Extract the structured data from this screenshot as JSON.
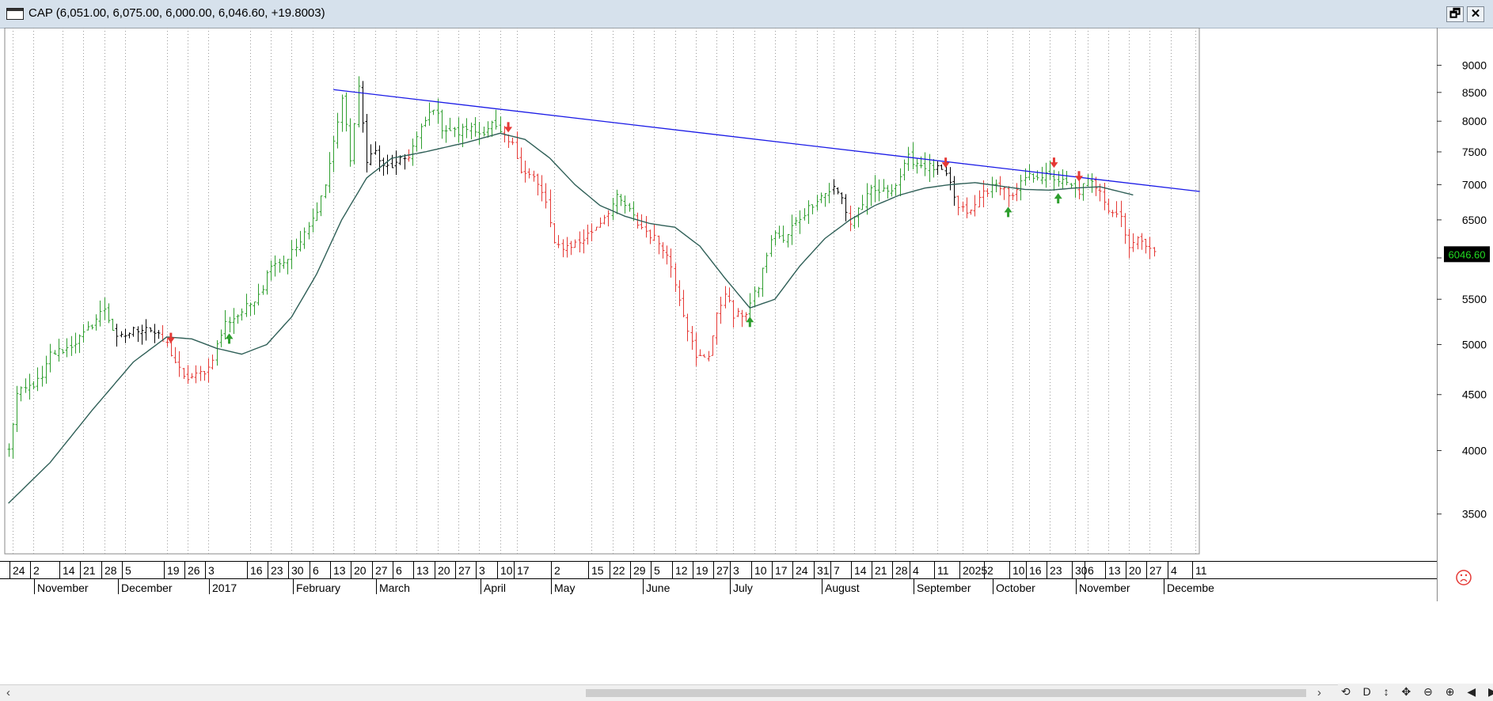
{
  "window": {
    "title": "CAP (6,051.00, 6,075.00, 6,000.00, 6,046.60, +19.8003)",
    "restore_label": "🗗",
    "close_label": "✕"
  },
  "scrollbar": {
    "left_arrow": "‹",
    "right_arrow": "›",
    "nav_tools": "⟲ D ↕ ✥ ⊖ ⊕ ◀ ▶ ⊟"
  },
  "status_icon": "sad-face-icon",
  "chart_data": {
    "type": "ohlc",
    "title": "",
    "last_price_label": "6046.60",
    "y_scale": "log",
    "ylim": [
      3300,
      9500
    ],
    "y_ticks": [
      3500,
      4000,
      4500,
      5000,
      5500,
      6000,
      6500,
      7000,
      7500,
      8000,
      8500,
      9000
    ],
    "grid": "vertical-dotted",
    "colors": {
      "up": "#2e9e2e",
      "down": "#e53935",
      "neutral": "#000000",
      "ma": "#2f5f57",
      "trendline": "#1a1ae6",
      "price_tag_bg": "#000000",
      "price_tag_fg": "#22dd22"
    },
    "day_labels": [
      {
        "i": 1,
        "t": "24"
      },
      {
        "i": 6,
        "t": "2"
      },
      {
        "i": 13,
        "t": "14"
      },
      {
        "i": 18,
        "t": "21"
      },
      {
        "i": 23,
        "t": "28"
      },
      {
        "i": 28,
        "t": "5"
      },
      {
        "i": 38,
        "t": "19"
      },
      {
        "i": 43,
        "t": "26"
      },
      {
        "i": 48,
        "t": "3"
      },
      {
        "i": 58,
        "t": "16"
      },
      {
        "i": 63,
        "t": "23"
      },
      {
        "i": 68,
        "t": "30"
      },
      {
        "i": 73,
        "t": "6"
      },
      {
        "i": 78,
        "t": "13"
      },
      {
        "i": 83,
        "t": "20"
      },
      {
        "i": 88,
        "t": "27"
      },
      {
        "i": 93,
        "t": "6"
      },
      {
        "i": 98,
        "t": "13"
      },
      {
        "i": 103,
        "t": "20"
      },
      {
        "i": 108,
        "t": "27"
      },
      {
        "i": 113,
        "t": "3"
      },
      {
        "i": 118,
        "t": "10"
      },
      {
        "i": 122,
        "t": "17"
      },
      {
        "i": 131,
        "t": "2"
      },
      {
        "i": 140,
        "t": "15"
      },
      {
        "i": 145,
        "t": "22"
      },
      {
        "i": 150,
        "t": "29"
      },
      {
        "i": 155,
        "t": "5"
      },
      {
        "i": 160,
        "t": "12"
      },
      {
        "i": 165,
        "t": "19"
      },
      {
        "i": 170,
        "t": "27"
      },
      {
        "i": 174,
        "t": "3"
      },
      {
        "i": 179,
        "t": "10"
      },
      {
        "i": 184,
        "t": "17"
      },
      {
        "i": 189,
        "t": "24"
      },
      {
        "i": 194,
        "t": "31"
      },
      {
        "i": 198,
        "t": "7"
      },
      {
        "i": 203,
        "t": "14"
      },
      {
        "i": 208,
        "t": "21"
      },
      {
        "i": 213,
        "t": "28"
      },
      {
        "i": 217,
        "t": "4"
      },
      {
        "i": 223,
        "t": "11"
      },
      {
        "i": 229,
        "t": "2025"
      },
      {
        "i": 235,
        "t": "2"
      },
      {
        "i": 241,
        "t": "10"
      },
      {
        "i": 245,
        "t": "16"
      },
      {
        "i": 250,
        "t": "23"
      },
      {
        "i": 256,
        "t": "30"
      },
      {
        "i": 259,
        "t": "6"
      },
      {
        "i": 264,
        "t": "13"
      },
      {
        "i": 269,
        "t": "20"
      },
      {
        "i": 274,
        "t": "27"
      },
      {
        "i": 279,
        "t": "4"
      },
      {
        "i": 285,
        "t": "11"
      }
    ],
    "month_labels": [
      {
        "i": 7,
        "t": "November"
      },
      {
        "i": 27,
        "t": "December"
      },
      {
        "i": 49,
        "t": "2017"
      },
      {
        "i": 69,
        "t": "February"
      },
      {
        "i": 89,
        "t": "March"
      },
      {
        "i": 114,
        "t": "April"
      },
      {
        "i": 131,
        "t": "May"
      },
      {
        "i": 153,
        "t": "June"
      },
      {
        "i": 174,
        "t": "July"
      },
      {
        "i": 196,
        "t": "August"
      },
      {
        "i": 218,
        "t": "September"
      },
      {
        "i": 237,
        "t": "October"
      },
      {
        "i": 257,
        "t": "November"
      },
      {
        "i": 278,
        "t": "Decembe"
      }
    ],
    "anchors": [
      [
        0,
        4000
      ],
      [
        2,
        4500
      ],
      [
        8,
        4650
      ],
      [
        10,
        4900
      ],
      [
        14,
        4960
      ],
      [
        18,
        5100
      ],
      [
        23,
        5400
      ],
      [
        26,
        5050
      ],
      [
        30,
        5150
      ],
      [
        33,
        5200
      ],
      [
        38,
        5000
      ],
      [
        42,
        4650
      ],
      [
        45,
        4680
      ],
      [
        48,
        4760
      ],
      [
        52,
        5230
      ],
      [
        55,
        5320
      ],
      [
        58,
        5450
      ],
      [
        61,
        5650
      ],
      [
        63,
        5950
      ],
      [
        66,
        5950
      ],
      [
        70,
        6200
      ],
      [
        73,
        6500
      ],
      [
        76,
        7000
      ],
      [
        78,
        7650
      ],
      [
        80,
        8400
      ],
      [
        82,
        7400
      ],
      [
        84,
        8550
      ],
      [
        86,
        7400
      ],
      [
        88,
        7500
      ],
      [
        90,
        7250
      ],
      [
        93,
        7300
      ],
      [
        96,
        7450
      ],
      [
        100,
        8000
      ],
      [
        102,
        8250
      ],
      [
        104,
        7900
      ],
      [
        108,
        7800
      ],
      [
        110,
        7900
      ],
      [
        113,
        7800
      ],
      [
        116,
        7950
      ],
      [
        119,
        7700
      ],
      [
        121,
        7600
      ],
      [
        123,
        7250
      ],
      [
        126,
        7100
      ],
      [
        129,
        6750
      ],
      [
        131,
        6150
      ],
      [
        134,
        6150
      ],
      [
        137,
        6200
      ],
      [
        140,
        6350
      ],
      [
        143,
        6550
      ],
      [
        146,
        6800
      ],
      [
        148,
        6700
      ],
      [
        151,
        6450
      ],
      [
        154,
        6300
      ],
      [
        157,
        6150
      ],
      [
        159,
        5900
      ],
      [
        162,
        5350
      ],
      [
        165,
        4850
      ],
      [
        168,
        4900
      ],
      [
        170,
        5300
      ],
      [
        172,
        5600
      ],
      [
        174,
        5300
      ],
      [
        177,
        5350
      ],
      [
        180,
        5650
      ],
      [
        182,
        6050
      ],
      [
        184,
        6350
      ],
      [
        186,
        6200
      ],
      [
        188,
        6400
      ],
      [
        191,
        6600
      ],
      [
        194,
        6800
      ],
      [
        198,
        6950
      ],
      [
        200,
        6800
      ],
      [
        202,
        6450
      ],
      [
        204,
        6650
      ],
      [
        207,
        6900
      ],
      [
        210,
        6900
      ],
      [
        213,
        7000
      ],
      [
        216,
        7400
      ],
      [
        219,
        7300
      ],
      [
        222,
        7250
      ],
      [
        224,
        7200
      ],
      [
        226,
        7000
      ],
      [
        228,
        6650
      ],
      [
        231,
        6600
      ],
      [
        234,
        6900
      ],
      [
        238,
        7000
      ],
      [
        241,
        6800
      ],
      [
        244,
        7100
      ],
      [
        247,
        7150
      ],
      [
        251,
        7100
      ],
      [
        254,
        7000
      ],
      [
        257,
        6900
      ],
      [
        259,
        7050
      ],
      [
        262,
        6950
      ],
      [
        264,
        6650
      ],
      [
        267,
        6550
      ],
      [
        269,
        6150
      ],
      [
        272,
        6250
      ],
      [
        274,
        6150
      ],
      [
        275,
        6050
      ]
    ],
    "ma_anchors": [
      [
        0,
        3580
      ],
      [
        10,
        3900
      ],
      [
        20,
        4350
      ],
      [
        30,
        4820
      ],
      [
        38,
        5080
      ],
      [
        44,
        5060
      ],
      [
        50,
        4960
      ],
      [
        56,
        4900
      ],
      [
        62,
        5000
      ],
      [
        68,
        5300
      ],
      [
        74,
        5800
      ],
      [
        80,
        6500
      ],
      [
        86,
        7100
      ],
      [
        92,
        7400
      ],
      [
        100,
        7500
      ],
      [
        110,
        7650
      ],
      [
        118,
        7800
      ],
      [
        124,
        7700
      ],
      [
        130,
        7400
      ],
      [
        136,
        7000
      ],
      [
        142,
        6700
      ],
      [
        148,
        6550
      ],
      [
        154,
        6450
      ],
      [
        160,
        6400
      ],
      [
        166,
        6150
      ],
      [
        172,
        5750
      ],
      [
        178,
        5400
      ],
      [
        184,
        5500
      ],
      [
        190,
        5900
      ],
      [
        196,
        6250
      ],
      [
        202,
        6500
      ],
      [
        208,
        6700
      ],
      [
        214,
        6850
      ],
      [
        220,
        6950
      ],
      [
        226,
        7000
      ],
      [
        232,
        7030
      ],
      [
        238,
        6980
      ],
      [
        244,
        6930
      ],
      [
        250,
        6920
      ],
      [
        256,
        6950
      ],
      [
        262,
        6970
      ],
      [
        270,
        6850
      ]
    ],
    "trendline": {
      "from": [
        78,
        8550
      ],
      "to": [
        286,
        6900
      ]
    },
    "signals": [
      {
        "i": 39,
        "dir": "down"
      },
      {
        "i": 53,
        "dir": "up"
      },
      {
        "i": 120,
        "dir": "down"
      },
      {
        "i": 178,
        "dir": "up"
      },
      {
        "i": 225,
        "dir": "down"
      },
      {
        "i": 240,
        "dir": "up"
      },
      {
        "i": 251,
        "dir": "down"
      },
      {
        "i": 252,
        "dir": "up"
      },
      {
        "i": 257,
        "dir": "down"
      }
    ]
  }
}
